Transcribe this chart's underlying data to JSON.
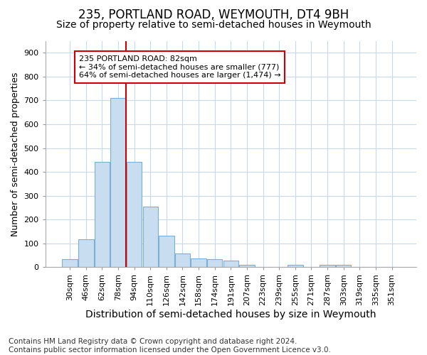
{
  "title1": "235, PORTLAND ROAD, WEYMOUTH, DT4 9BH",
  "title2": "Size of property relative to semi-detached houses in Weymouth",
  "xlabel": "Distribution of semi-detached houses by size in Weymouth",
  "ylabel": "Number of semi-detached properties",
  "categories": [
    "30sqm",
    "46sqm",
    "62sqm",
    "78sqm",
    "94sqm",
    "110sqm",
    "126sqm",
    "142sqm",
    "158sqm",
    "174sqm",
    "191sqm",
    "207sqm",
    "223sqm",
    "239sqm",
    "255sqm",
    "271sqm",
    "287sqm",
    "303sqm",
    "319sqm",
    "335sqm",
    "351sqm"
  ],
  "values": [
    35,
    117,
    443,
    710,
    443,
    255,
    133,
    57,
    38,
    35,
    28,
    10,
    0,
    0,
    10,
    0,
    10,
    10,
    0,
    0,
    0
  ],
  "bar_color": "#c8ddf0",
  "bar_edge_color": "#7bafd4",
  "grid_color": "#c8d8ee",
  "vline_x": 3.5,
  "vline_color": "#cc0000",
  "annotation_text": "235 PORTLAND ROAD: 82sqm\n← 34% of semi-detached houses are smaller (777)\n64% of semi-detached houses are larger (1,474) →",
  "annotation_box_color": "#ffffff",
  "annotation_box_edge": "#cc0000",
  "ylim": [
    0,
    950
  ],
  "yticks": [
    0,
    100,
    200,
    300,
    400,
    500,
    600,
    700,
    800,
    900
  ],
  "footnote": "Contains HM Land Registry data © Crown copyright and database right 2024.\nContains public sector information licensed under the Open Government Licence v3.0.",
  "bg_color": "#ffffff",
  "plot_bg_color": "#ffffff",
  "title1_fontsize": 12,
  "title2_fontsize": 10,
  "xlabel_fontsize": 10,
  "ylabel_fontsize": 9,
  "tick_fontsize": 8,
  "footnote_fontsize": 7.5
}
